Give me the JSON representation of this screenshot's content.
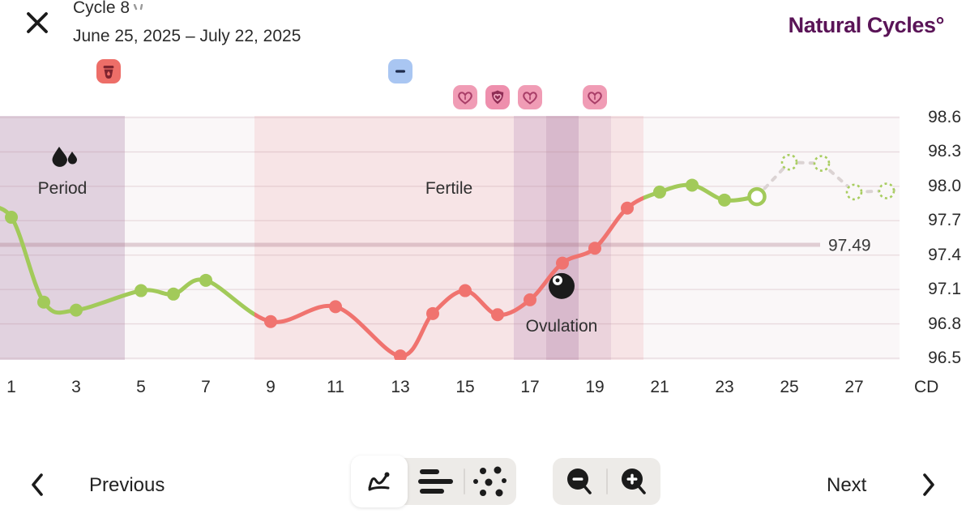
{
  "header": {
    "title": "Cycle 8",
    "date_range": "June 25, 2025 – July 22, 2025",
    "logo": "Natural Cycles°"
  },
  "events": [
    {
      "name": "period-product-icon",
      "type": "period",
      "cd": 4,
      "row": 1,
      "bg": "#ED6E68",
      "fg": "#7E242F"
    },
    {
      "name": "lh-test-negative-icon",
      "type": "minus",
      "cd": 13,
      "row": 1,
      "bg": "#A9C6F2",
      "fg": "#1F2C4D"
    },
    {
      "name": "sex-icon",
      "type": "heart",
      "cd": 15,
      "row": 2,
      "bg": "#F09CB5",
      "fg": "#A93E68"
    },
    {
      "name": "sex-protected-icon",
      "type": "heart-shield",
      "cd": 16,
      "row": 2,
      "bg": "#EE8FAD",
      "fg": "#8F2D55"
    },
    {
      "name": "sex-icon",
      "type": "heart",
      "cd": 17,
      "row": 2,
      "bg": "#F09CB5",
      "fg": "#A93E68"
    },
    {
      "name": "sex-icon",
      "type": "heart",
      "cd": 19,
      "row": 2,
      "bg": "#F09CB5",
      "fg": "#A93E68"
    }
  ],
  "chart_data": {
    "type": "line",
    "xlabel": "CD",
    "x_ticks": [
      1,
      3,
      5,
      7,
      9,
      11,
      13,
      15,
      17,
      19,
      21,
      23,
      25,
      27
    ],
    "y_ticks": [
      98.6,
      98.3,
      98.0,
      97.7,
      97.4,
      97.1,
      96.8,
      96.5
    ],
    "ylim": [
      96.5,
      98.6
    ],
    "xlim_days": [
      1,
      28
    ],
    "coverline": {
      "value": 97.49,
      "label": "97.49"
    },
    "labels": {
      "period": "Period",
      "fertile": "Fertile",
      "ovulation": "Ovulation"
    },
    "colors": {
      "measured_low": "#A2CA5A",
      "measured_fertile": "#F0736F",
      "prediction": "#A8CD60",
      "connector": "#DBD3D3",
      "coverline": "rgba(172,118,133,0.32)",
      "grid": "rgba(183,135,148,0.26)"
    },
    "regions": [
      {
        "name": "period",
        "label": "Period",
        "from_cd": 0,
        "to_cd": 4.5,
        "color": "#E1D2DF"
      },
      {
        "name": "pre-fertile",
        "label": "",
        "from_cd": 4.5,
        "to_cd": 8.5,
        "color": "#FAF7F8"
      },
      {
        "name": "fertile",
        "label": "Fertile",
        "from_cd": 8.5,
        "to_cd": 20.5,
        "color": "#F7E4E6"
      },
      {
        "name": "fertile-high",
        "label": "",
        "from_cd": 16.5,
        "to_cd": 17.5,
        "color": "#E5CBD9"
      },
      {
        "name": "ovulation-day",
        "label": "",
        "from_cd": 17.5,
        "to_cd": 18.5,
        "color": "#D8B9CC"
      },
      {
        "name": "fertile-high2",
        "label": "",
        "from_cd": 18.5,
        "to_cd": 19.5,
        "color": "#EBD3DC"
      },
      {
        "name": "post-fertile",
        "label": "",
        "from_cd": 20.5,
        "to_cd": 29,
        "color": "#FAF7F8"
      }
    ],
    "ovulation_marker": {
      "cd": 18,
      "temp": 97.13
    },
    "lead_in": {
      "cd": 0,
      "temp": 97.82
    },
    "measured": [
      {
        "cd": 1,
        "temp": 97.73
      },
      {
        "cd": 2,
        "temp": 96.99
      },
      {
        "cd": 3,
        "temp": 96.92
      },
      {
        "cd": 5,
        "temp": 97.09
      },
      {
        "cd": 6,
        "temp": 97.06
      },
      {
        "cd": 7,
        "temp": 97.18
      },
      {
        "cd": 9,
        "temp": 96.82
      },
      {
        "cd": 11,
        "temp": 96.95
      },
      {
        "cd": 13,
        "temp": 96.52
      },
      {
        "cd": 14,
        "temp": 96.89
      },
      {
        "cd": 15,
        "temp": 97.09
      },
      {
        "cd": 16,
        "temp": 96.88
      },
      {
        "cd": 17,
        "temp": 97.01
      },
      {
        "cd": 18,
        "temp": 97.33
      },
      {
        "cd": 19,
        "temp": 97.46
      },
      {
        "cd": 20,
        "temp": 97.81
      },
      {
        "cd": 21,
        "temp": 97.95
      },
      {
        "cd": 22,
        "temp": 98.01
      },
      {
        "cd": 23,
        "temp": 97.88
      },
      {
        "cd": 24,
        "temp": 97.91,
        "open": true
      }
    ],
    "predicted": [
      {
        "cd": 25,
        "temp": 98.21
      },
      {
        "cd": 26,
        "temp": 98.2
      },
      {
        "cd": 27,
        "temp": 97.95
      },
      {
        "cd": 28,
        "temp": 97.96
      }
    ]
  },
  "footer": {
    "previous": "Previous",
    "next": "Next",
    "chart_types": [
      "line-chart",
      "bar-chart",
      "scatter-chart"
    ],
    "selected_chart_type": "line-chart"
  }
}
